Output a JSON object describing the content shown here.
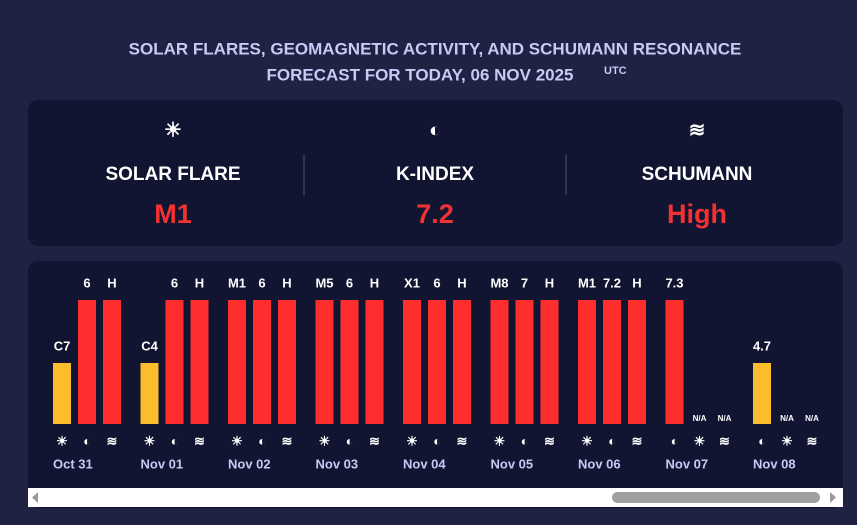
{
  "header": {
    "title_line1": "SOLAR FLARES, GEOMAGNETIC ACTIVITY, AND SCHUMANN RESONANCE",
    "title_line2": "FORECAST FOR TODAY, 06 NOV 2025",
    "title_sup": "UTC"
  },
  "today": [
    {
      "icon": "☀",
      "label": "SOLAR FLARE",
      "value": "M1"
    },
    {
      "icon": "◐",
      "label": "K-INDEX",
      "value": "7.2"
    },
    {
      "icon": "≋",
      "label": "SCHUMANN",
      "value": "High"
    }
  ],
  "level_colors": {
    "high": "#ff2e2e",
    "moderate": "#fbbd2c"
  },
  "days": [
    {
      "date": "Oct 31",
      "items": [
        {
          "icon": "☀",
          "label": "C7",
          "level": "moderate"
        },
        {
          "icon": "◐",
          "label": "6",
          "level": "high"
        },
        {
          "icon": "≋",
          "label": "H",
          "level": "high"
        }
      ]
    },
    {
      "date": "Nov 01",
      "items": [
        {
          "icon": "☀",
          "label": "C4",
          "level": "moderate"
        },
        {
          "icon": "◐",
          "label": "6",
          "level": "high"
        },
        {
          "icon": "≋",
          "label": "H",
          "level": "high"
        }
      ]
    },
    {
      "date": "Nov 02",
      "items": [
        {
          "icon": "☀",
          "label": "M1",
          "level": "high"
        },
        {
          "icon": "◐",
          "label": "6",
          "level": "high"
        },
        {
          "icon": "≋",
          "label": "H",
          "level": "high"
        }
      ]
    },
    {
      "date": "Nov 03",
      "items": [
        {
          "icon": "☀",
          "label": "M5",
          "level": "high"
        },
        {
          "icon": "◐",
          "label": "6",
          "level": "high"
        },
        {
          "icon": "≋",
          "label": "H",
          "level": "high"
        }
      ]
    },
    {
      "date": "Nov 04",
      "items": [
        {
          "icon": "☀",
          "label": "X1",
          "level": "high"
        },
        {
          "icon": "◐",
          "label": "6",
          "level": "high"
        },
        {
          "icon": "≋",
          "label": "H",
          "level": "high"
        }
      ]
    },
    {
      "date": "Nov 05",
      "items": [
        {
          "icon": "☀",
          "label": "M8",
          "level": "high"
        },
        {
          "icon": "◐",
          "label": "7",
          "level": "high"
        },
        {
          "icon": "≋",
          "label": "H",
          "level": "high"
        }
      ]
    },
    {
      "date": "Nov 06",
      "items": [
        {
          "icon": "☀",
          "label": "M1",
          "level": "high"
        },
        {
          "icon": "◐",
          "label": "7.2",
          "level": "high"
        },
        {
          "icon": "≋",
          "label": "H",
          "level": "high"
        }
      ]
    },
    {
      "date": "Nov 07",
      "items": [
        {
          "icon": "◐",
          "label": "7.3",
          "level": "high"
        },
        {
          "icon": "☀",
          "label": "N/A"
        },
        {
          "icon": "≋",
          "label": "N/A"
        }
      ]
    },
    {
      "date": "Nov 08",
      "items": [
        {
          "icon": "◐",
          "label": "4.7",
          "level": "moderate"
        },
        {
          "icon": "☀",
          "label": "N/A"
        },
        {
          "icon": "≋",
          "label": "N/A"
        }
      ]
    }
  ]
}
